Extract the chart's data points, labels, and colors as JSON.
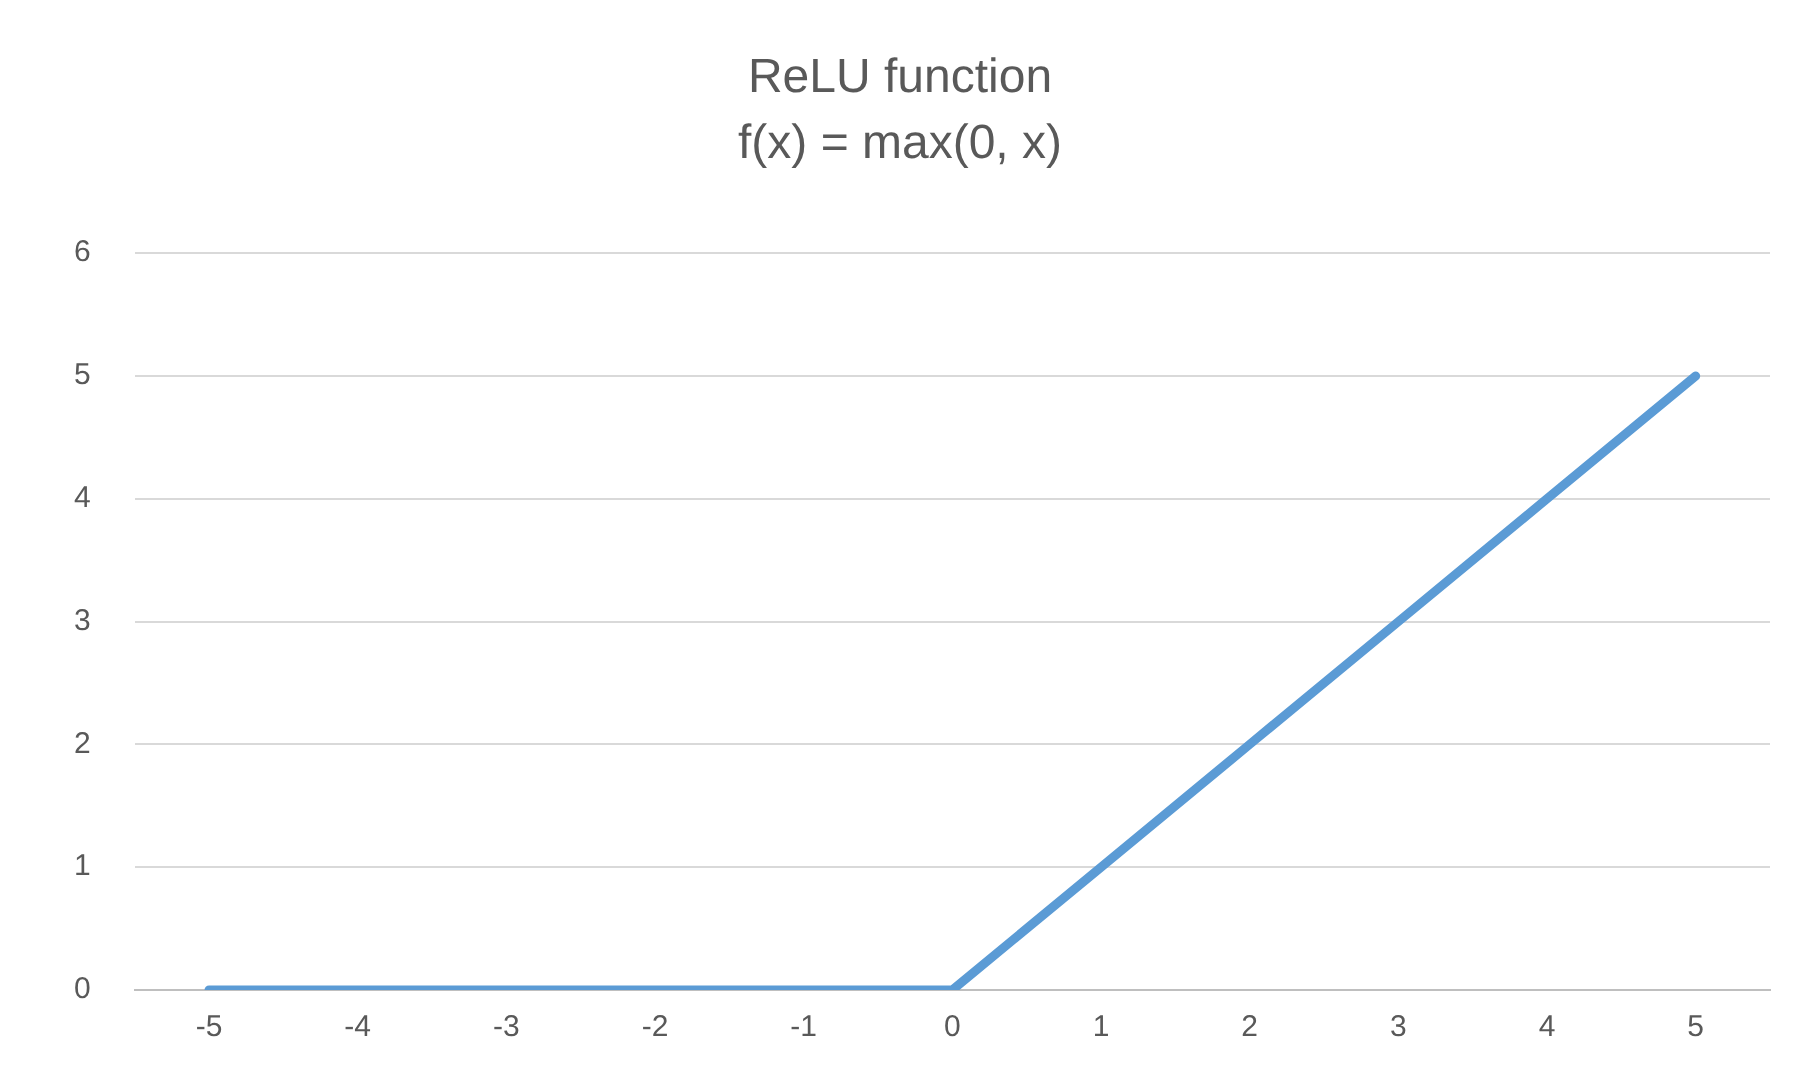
{
  "chart_data": {
    "type": "line",
    "title": "ReLU function",
    "subtitle": "f(x) = max(0, x)",
    "categories": [
      "-5",
      "-4",
      "-3",
      "-2",
      "-1",
      "0",
      "1",
      "2",
      "3",
      "4",
      "5"
    ],
    "series": [
      {
        "color": "#5b9bd5",
        "values": [
          0,
          0,
          0,
          0,
          0,
          0,
          1,
          2,
          3,
          4,
          5
        ]
      }
    ],
    "ylim": [
      0,
      6
    ],
    "yticks": [
      0,
      1,
      2,
      3,
      4,
      5,
      6
    ],
    "grid": "y",
    "legend": false,
    "marker": "none",
    "line_style": "solid"
  }
}
